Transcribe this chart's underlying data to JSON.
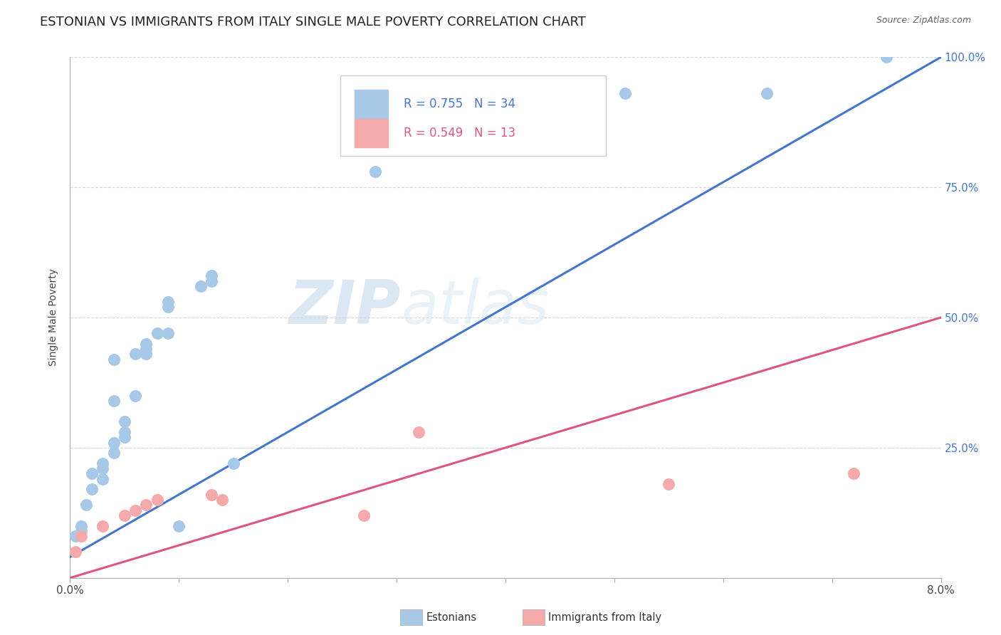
{
  "title": "ESTONIAN VS IMMIGRANTS FROM ITALY SINGLE MALE POVERTY CORRELATION CHART",
  "source": "Source: ZipAtlas.com",
  "ylabel": "Single Male Poverty",
  "xlim": [
    0.0,
    0.08
  ],
  "ylim": [
    0.0,
    1.0
  ],
  "xtick_positions": [
    0.0,
    0.01,
    0.02,
    0.03,
    0.04,
    0.05,
    0.06,
    0.07,
    0.08
  ],
  "xticklabels": [
    "0.0%",
    "",
    "",
    "",
    "",
    "",
    "",
    "",
    "8.0%"
  ],
  "ytick_positions": [
    0.0,
    0.25,
    0.5,
    0.75,
    1.0
  ],
  "yticklabels_right": [
    "",
    "25.0%",
    "50.0%",
    "75.0%",
    "100.0%"
  ],
  "blue_scatter_color": "#A8C8E8",
  "pink_scatter_color": "#F4AAAA",
  "blue_line_color": "#4477CC",
  "pink_line_color": "#DD5588",
  "R_blue": 0.755,
  "N_blue": 34,
  "R_pink": 0.549,
  "N_pink": 13,
  "watermark_zip": "ZIP",
  "watermark_atlas": "atlas",
  "blue_x": [
    0.0005,
    0.001,
    0.001,
    0.0015,
    0.002,
    0.002,
    0.003,
    0.003,
    0.003,
    0.004,
    0.004,
    0.004,
    0.004,
    0.005,
    0.005,
    0.005,
    0.006,
    0.006,
    0.007,
    0.007,
    0.007,
    0.008,
    0.009,
    0.009,
    0.009,
    0.01,
    0.012,
    0.013,
    0.013,
    0.015,
    0.028,
    0.051,
    0.064,
    0.075
  ],
  "blue_y": [
    0.08,
    0.09,
    0.1,
    0.14,
    0.17,
    0.2,
    0.19,
    0.21,
    0.22,
    0.24,
    0.26,
    0.34,
    0.42,
    0.27,
    0.28,
    0.3,
    0.35,
    0.43,
    0.43,
    0.44,
    0.45,
    0.47,
    0.47,
    0.52,
    0.53,
    0.1,
    0.56,
    0.57,
    0.58,
    0.22,
    0.78,
    0.93,
    0.93,
    1.0
  ],
  "pink_x": [
    0.0005,
    0.001,
    0.003,
    0.005,
    0.006,
    0.007,
    0.008,
    0.013,
    0.014,
    0.027,
    0.032,
    0.055,
    0.072
  ],
  "pink_y": [
    0.05,
    0.08,
    0.1,
    0.12,
    0.13,
    0.14,
    0.15,
    0.16,
    0.15,
    0.12,
    0.28,
    0.18,
    0.2
  ],
  "background_color": "#FFFFFF",
  "grid_color": "#CCCCCC",
  "title_fontsize": 13,
  "axis_label_fontsize": 10,
  "tick_fontsize": 11,
  "legend_fontsize": 12,
  "blue_line_x": [
    0.0,
    0.08
  ],
  "blue_line_y": [
    0.04,
    1.0
  ],
  "pink_line_x": [
    0.0,
    0.08
  ],
  "pink_line_y": [
    0.0,
    0.5
  ]
}
